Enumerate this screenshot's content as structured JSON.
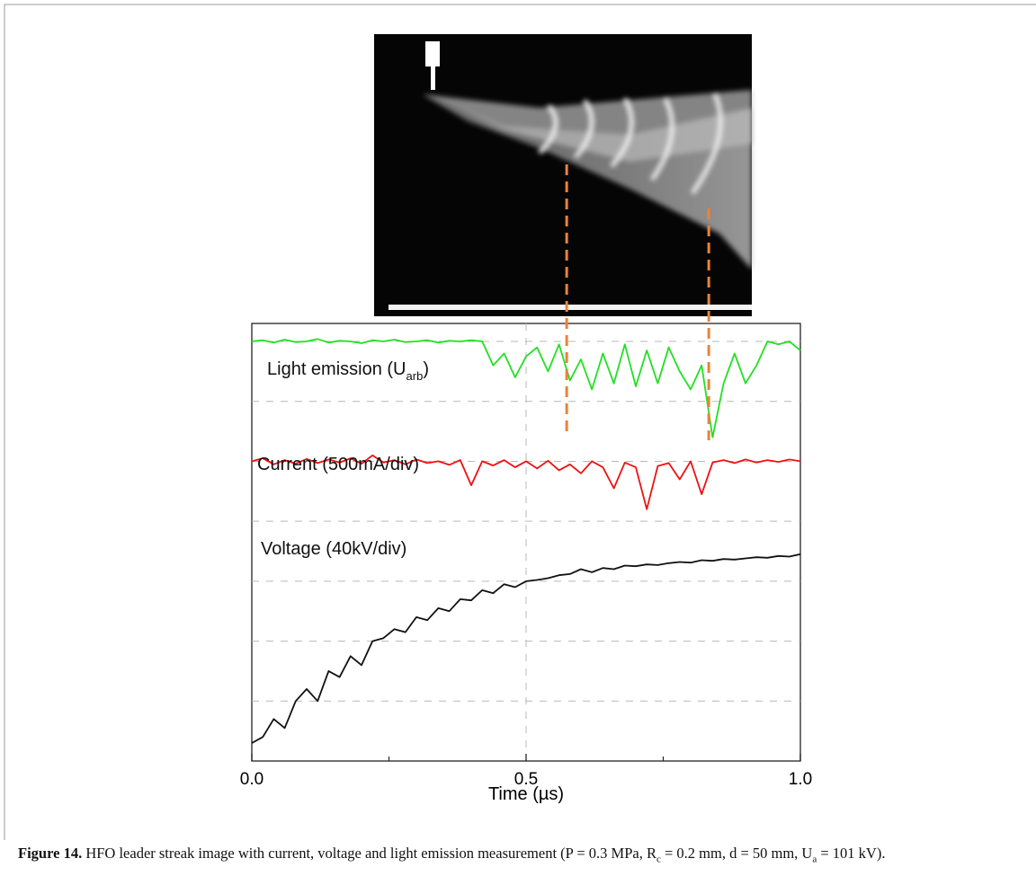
{
  "chart_data": {
    "type": "line",
    "x_label": "Time (µs)",
    "xlim": [
      0,
      1
    ],
    "xticks": [
      {
        "value": 0,
        "label": "0.0"
      },
      {
        "value": 0.5,
        "label": "0.5"
      },
      {
        "value": 1,
        "label": "1.0"
      }
    ],
    "xminor_ticks": [
      0.25,
      0.75
    ],
    "xgrid": true,
    "ylim": [
      0,
      7.3
    ],
    "ygrid": [
      1,
      2,
      3,
      4,
      5,
      6,
      7
    ],
    "x": [
      0,
      0.02,
      0.04,
      0.06,
      0.08,
      0.1,
      0.12,
      0.14,
      0.16,
      0.18,
      0.2,
      0.22,
      0.24,
      0.26,
      0.28,
      0.3,
      0.32,
      0.34,
      0.36,
      0.38,
      0.4,
      0.42,
      0.44,
      0.46,
      0.48,
      0.5,
      0.52,
      0.54,
      0.56,
      0.58,
      0.6,
      0.62,
      0.64,
      0.66,
      0.68,
      0.7,
      0.72,
      0.74,
      0.76,
      0.78,
      0.8,
      0.82,
      0.84,
      0.86,
      0.88,
      0.9,
      0.92,
      0.94,
      0.96,
      0.98,
      1
    ],
    "series": [
      {
        "name": "Light emission (U",
        "name_sub": "arb",
        "name_end": ")",
        "color": "#22e022",
        "values": [
          7.0,
          7.02,
          6.98,
          7.03,
          6.99,
          7.0,
          7.04,
          6.98,
          7.01,
          7.0,
          6.97,
          7.02,
          7.0,
          7.03,
          6.99,
          7.0,
          7.02,
          6.98,
          7.01,
          7.0,
          7.02,
          7.0,
          6.6,
          6.8,
          6.4,
          6.75,
          6.9,
          6.5,
          6.95,
          6.35,
          6.7,
          6.2,
          6.8,
          6.3,
          6.95,
          6.25,
          6.85,
          6.3,
          6.9,
          6.5,
          6.2,
          6.6,
          5.4,
          6.3,
          6.8,
          6.3,
          6.6,
          7.0,
          6.95,
          7.0,
          6.85
        ]
      },
      {
        "name": "Current (500mA/div)",
        "color": "#ee1111",
        "values": [
          5.0,
          5.05,
          4.95,
          5.02,
          4.96,
          5.04,
          4.97,
          5.03,
          4.98,
          5.05,
          4.96,
          5.1,
          4.98,
          5.02,
          4.95,
          5.03,
          4.97,
          5.0,
          4.94,
          5.02,
          4.6,
          5.0,
          4.93,
          5.02,
          4.9,
          5.0,
          4.88,
          5.01,
          4.85,
          4.95,
          4.8,
          5.0,
          4.9,
          4.55,
          4.98,
          4.9,
          4.2,
          4.92,
          4.97,
          4.7,
          5.0,
          4.45,
          4.98,
          5.02,
          4.97,
          5.03,
          4.98,
          5.02,
          4.99,
          5.03,
          5.0
        ]
      },
      {
        "name": "Voltage (40kV/div)",
        "color": "#111111",
        "values": [
          0.3,
          0.4,
          0.7,
          0.55,
          1.0,
          1.2,
          1.0,
          1.5,
          1.4,
          1.75,
          1.6,
          2.0,
          2.05,
          2.2,
          2.15,
          2.4,
          2.35,
          2.55,
          2.5,
          2.7,
          2.68,
          2.85,
          2.8,
          2.95,
          2.9,
          3.0,
          3.02,
          3.05,
          3.1,
          3.12,
          3.2,
          3.15,
          3.22,
          3.2,
          3.26,
          3.25,
          3.28,
          3.27,
          3.3,
          3.32,
          3.31,
          3.35,
          3.34,
          3.37,
          3.36,
          3.38,
          3.4,
          3.39,
          3.42,
          3.41,
          3.45
        ]
      }
    ],
    "markers": [
      {
        "x": 0.574,
        "color": "#e8843a"
      },
      {
        "x": 0.833,
        "color": "#e8843a"
      }
    ]
  },
  "caption": {
    "label": "Figure 14.",
    "runs": [
      {
        "text": " HFO leader streak image with current, voltage and light emission measurement (P = 0.3 MPa, R"
      },
      {
        "sub": "c"
      },
      {
        "text": " = 0.2 mm, d = 50 mm, U"
      },
      {
        "sub": "a"
      },
      {
        "text": " = 101 kV)."
      }
    ]
  }
}
